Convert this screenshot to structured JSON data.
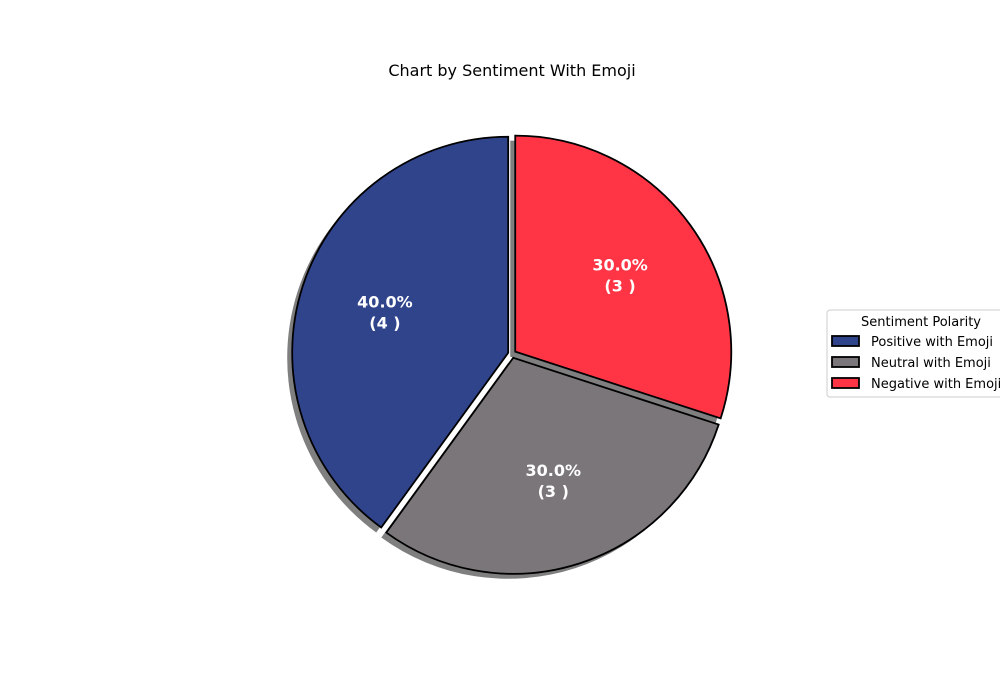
{
  "chart_data": {
    "type": "pie",
    "title": "Chart by Sentiment With Emoji",
    "slices": [
      {
        "name": "Positive with Emoji",
        "value": 4,
        "percent_label": "40.0%",
        "count_label": "(4 )",
        "color": "#30448c"
      },
      {
        "name": "Neutral with Emoji",
        "value": 3,
        "percent_label": "30.0%",
        "count_label": "(3 )",
        "color": "#7b7679"
      },
      {
        "name": "Negative with Emoji",
        "value": 3,
        "percent_label": "30.0%",
        "count_label": "(3 )",
        "color": "#ff3545"
      }
    ],
    "legend": {
      "title": "Sentiment Polarity",
      "placement": "right"
    },
    "shadow": true,
    "explode": true,
    "edge_color": "#000000"
  }
}
